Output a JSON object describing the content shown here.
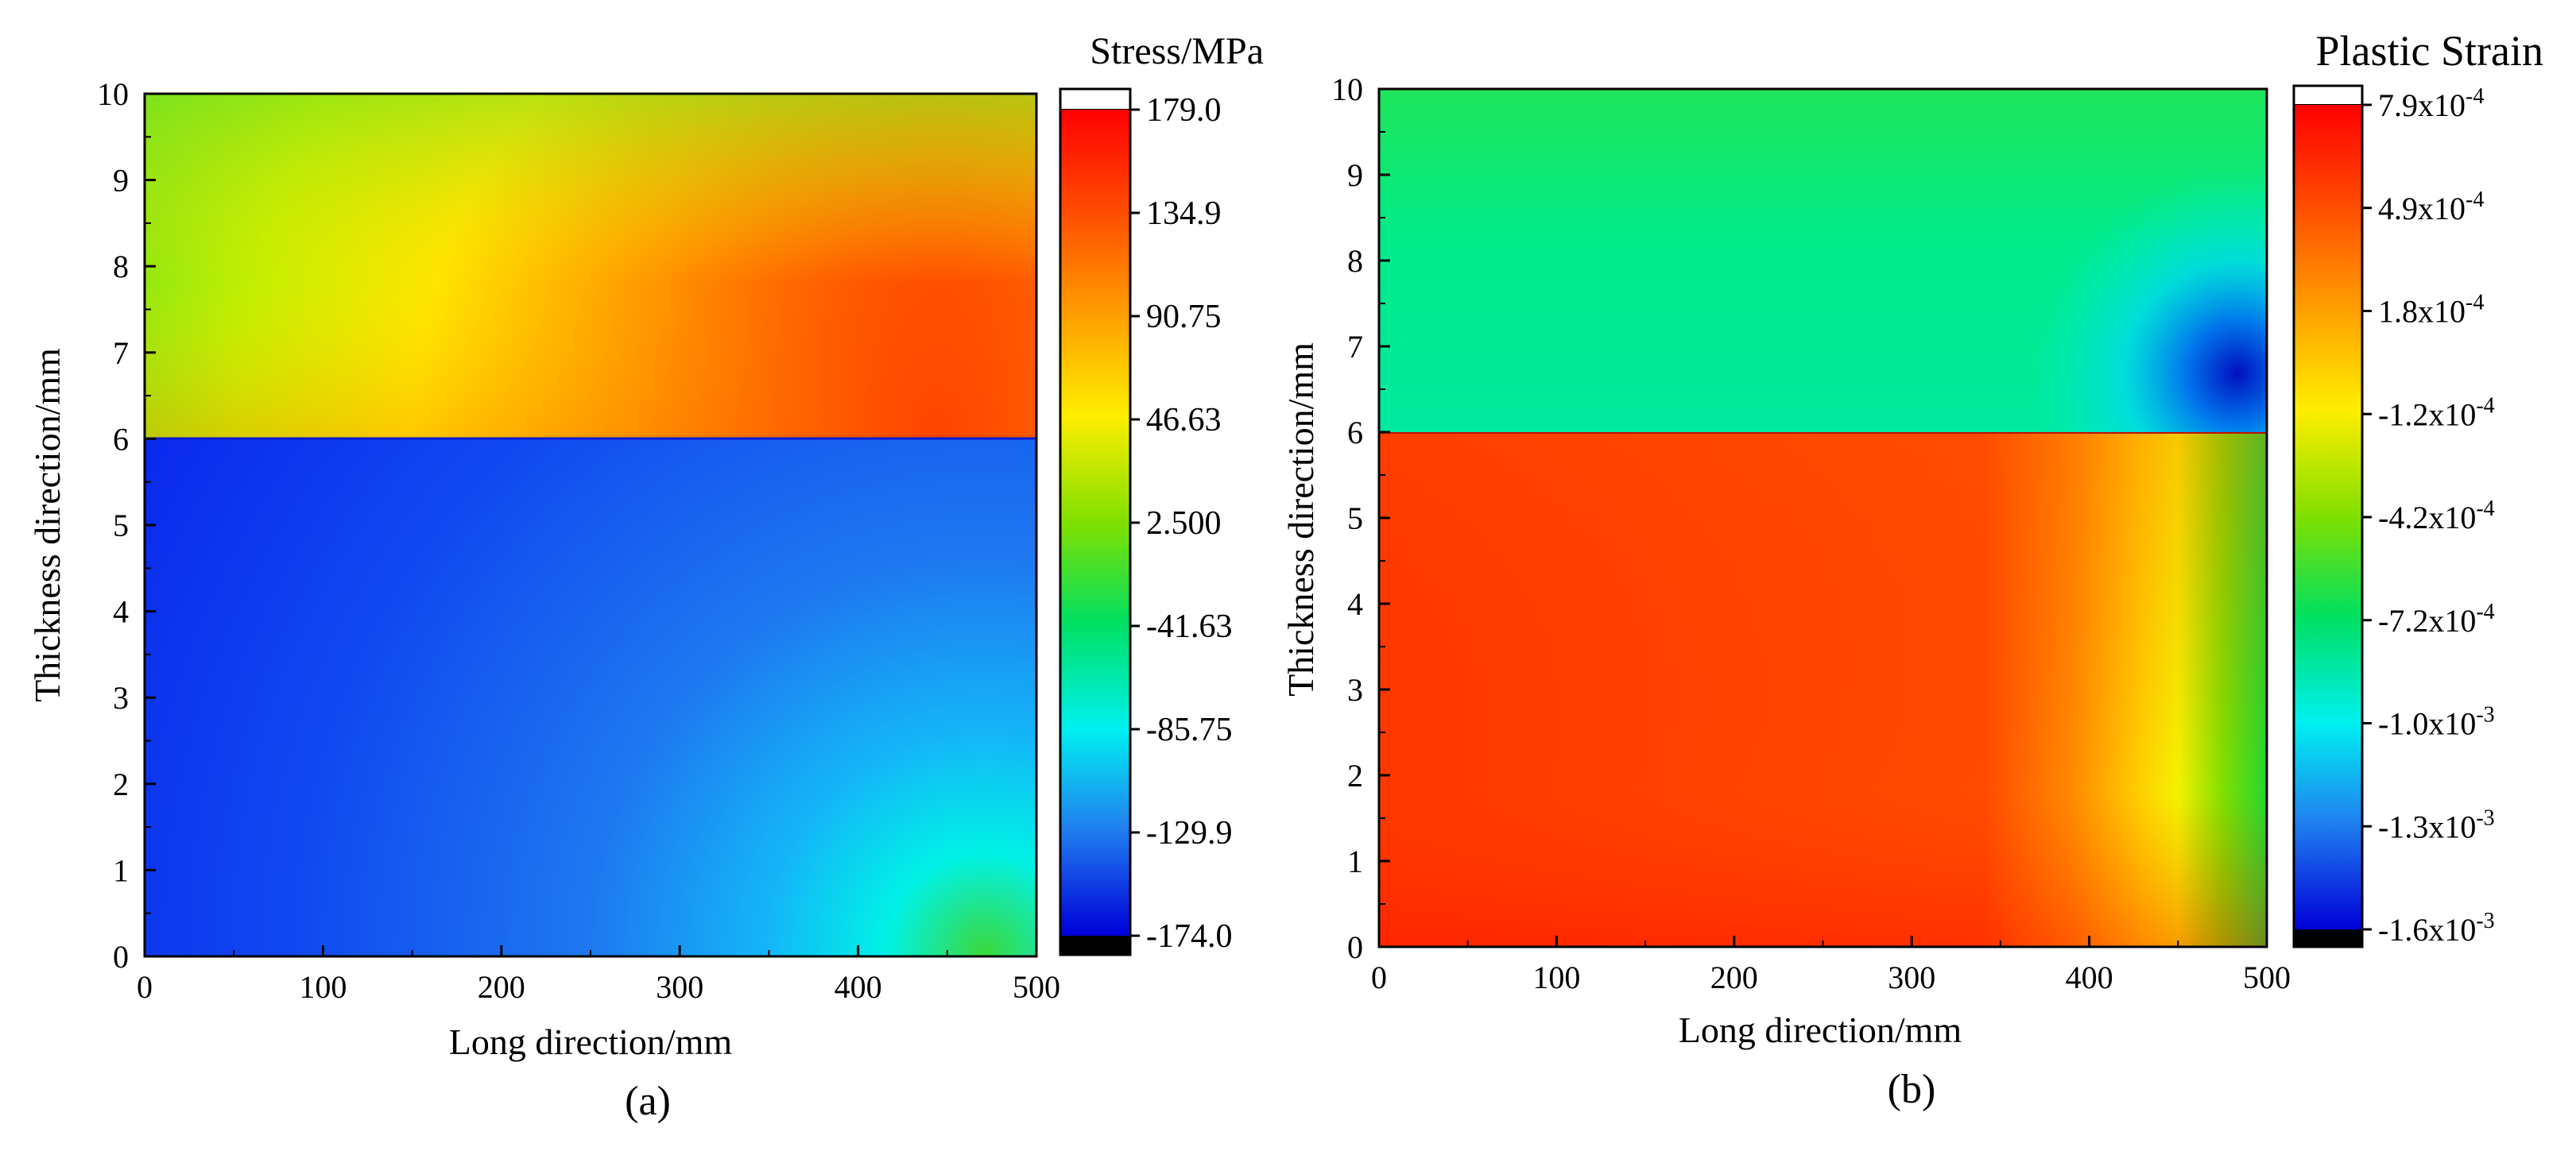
{
  "chart_data": [
    {
      "type": "heatmap",
      "panel_label": "(a)",
      "xlabel": "Long direction/mm",
      "ylabel": "Thickness direction/mm",
      "xlim": [
        0,
        500
      ],
      "ylim": [
        0,
        10
      ],
      "x_ticks": [
        "0",
        "100",
        "200",
        "300",
        "400",
        "500"
      ],
      "y_ticks": [
        "0",
        "1",
        "2",
        "3",
        "4",
        "5",
        "6",
        "7",
        "8",
        "9",
        "10"
      ],
      "x_tick_values": [
        0,
        100,
        200,
        300,
        400,
        500
      ],
      "y_tick_values": [
        0,
        1,
        2,
        3,
        4,
        5,
        6,
        7,
        8,
        9,
        10
      ],
      "interface_y": 6,
      "colorbar": {
        "title": "Stress/MPa",
        "min": -174.0,
        "max": 179.0,
        "tick_labels": [
          "179.0",
          "134.9",
          "90.75",
          "46.63",
          "2.500",
          "-41.63",
          "-85.75",
          "-129.9",
          "-174.0"
        ],
        "tick_values": [
          179.0,
          134.9,
          90.75,
          46.63,
          2.5,
          -41.63,
          -85.75,
          -129.9,
          -174.0
        ]
      },
      "field_description_values": {
        "top_layer_range": [
          46.63,
          179.0
        ],
        "bottom_layer_range": [
          -174.0,
          2.5
        ]
      }
    },
    {
      "type": "heatmap",
      "panel_label": "(b)",
      "xlabel": "Long direction/mm",
      "ylabel": "Thickness direction/mm",
      "xlim": [
        0,
        500
      ],
      "ylim": [
        0,
        10
      ],
      "x_ticks": [
        "0",
        "100",
        "200",
        "300",
        "400",
        "500"
      ],
      "y_ticks": [
        "0",
        "1",
        "2",
        "3",
        "4",
        "5",
        "6",
        "7",
        "8",
        "9",
        "10"
      ],
      "x_tick_values": [
        0,
        100,
        200,
        300,
        400,
        500
      ],
      "y_tick_values": [
        0,
        1,
        2,
        3,
        4,
        5,
        6,
        7,
        8,
        9,
        10
      ],
      "interface_y": 6,
      "colorbar": {
        "title": "Plastic Strain",
        "min": -0.0016,
        "max": 0.00079,
        "tick_labels": [
          {
            "mantissa": "7.9x10",
            "exp": "-4"
          },
          {
            "mantissa": "4.9x10",
            "exp": "-4"
          },
          {
            "mantissa": "1.8x10",
            "exp": "-4"
          },
          {
            "mantissa": "-1.2x10",
            "exp": "-4"
          },
          {
            "mantissa": "-4.2x10",
            "exp": "-4"
          },
          {
            "mantissa": "-7.2x10",
            "exp": "-4"
          },
          {
            "mantissa": "-1.0x10",
            "exp": "-3"
          },
          {
            "mantissa": "-1.3x10",
            "exp": "-3"
          },
          {
            "mantissa": "-1.6x10",
            "exp": "-3"
          }
        ]
      }
    }
  ]
}
